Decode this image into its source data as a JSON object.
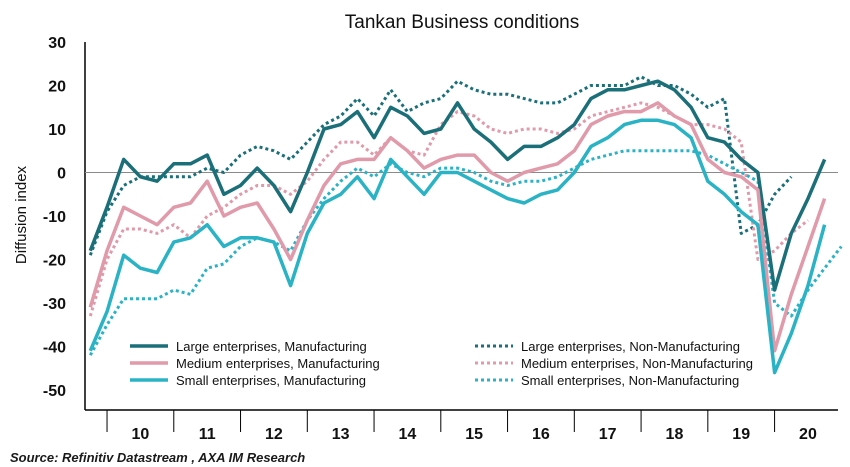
{
  "chart_data": {
    "type": "line",
    "title": "Tankan Business conditions",
    "ylabel": "Diffusion index",
    "source": "Source: Refinitiv Datastream , AXA IM Research",
    "ylim": [
      -50,
      30
    ],
    "yticks": [
      30,
      20,
      10,
      0,
      -10,
      -20,
      -30,
      -40,
      -50
    ],
    "xticks": [
      "10",
      "11",
      "12",
      "13",
      "14",
      "15",
      "16",
      "17",
      "18",
      "19",
      "20"
    ],
    "x_start_year": 2009.75,
    "x_step": 0.25,
    "grid": false,
    "zero_line": true,
    "legend_position": "bottom",
    "series": [
      {
        "name": "Large enterprises, Manufacturing",
        "color": "#1a6f78",
        "style": "solid",
        "values": [
          -18,
          -8,
          3,
          -1,
          -2,
          2,
          2,
          4,
          -5,
          -3,
          1,
          -3,
          -9,
          0,
          10,
          11,
          14,
          8,
          15,
          13,
          9,
          10,
          16,
          10,
          7,
          3,
          6,
          6,
          8,
          11,
          17,
          19,
          19,
          20,
          21,
          19,
          15,
          8,
          7,
          3,
          0,
          -27,
          -14,
          -6,
          3
        ]
      },
      {
        "name": "Large enterprises, Non-Manufacturing",
        "color": "#1a6f78",
        "style": "dotted",
        "values": [
          -19,
          -9,
          -3,
          -1,
          -1,
          -1,
          -1,
          1,
          0,
          4,
          6,
          5,
          3,
          7,
          11,
          13,
          17,
          13,
          19,
          14,
          16,
          17,
          21,
          19,
          18,
          18,
          17,
          16,
          16,
          18,
          20,
          20,
          20,
          22,
          20,
          20,
          18,
          15,
          17,
          -14,
          -12,
          -5,
          -1
        ]
      },
      {
        "name": "Medium enterprises, Manufacturing",
        "color": "#e09aaa",
        "style": "solid",
        "values": [
          -31,
          -18,
          -8,
          -10,
          -12,
          -8,
          -7,
          -2,
          -10,
          -8,
          -7,
          -13,
          -20,
          -11,
          -3,
          2,
          3,
          3,
          8,
          5,
          1,
          3,
          4,
          4,
          0,
          -2,
          0,
          1,
          2,
          5,
          11,
          13,
          14,
          14,
          16,
          13,
          11,
          3,
          0,
          -1,
          -4,
          -41,
          -28,
          -17,
          -6
        ]
      },
      {
        "name": "Medium enterprises, Non-Manufacturing",
        "color": "#e09aaa",
        "style": "dotted",
        "values": [
          -33,
          -20,
          -13,
          -13,
          -14,
          -12,
          -15,
          -10,
          -8,
          -5,
          -3,
          -3,
          -5,
          -2,
          3,
          7,
          7,
          4,
          8,
          5,
          4,
          11,
          14,
          13,
          10,
          9,
          10,
          10,
          9,
          10,
          13,
          14,
          15,
          16,
          15,
          13,
          11,
          11,
          10,
          7,
          -20,
          -18,
          -14,
          -11
        ]
      },
      {
        "name": "Small enterprises, Manufacturing",
        "color": "#2ab3c5",
        "style": "solid",
        "values": [
          -41,
          -32,
          -19,
          -22,
          -23,
          -16,
          -15,
          -12,
          -17,
          -15,
          -15,
          -16,
          -26,
          -14,
          -7,
          -5,
          -1,
          -6,
          3,
          -1,
          -5,
          0,
          0,
          -2,
          -4,
          -6,
          -7,
          -5,
          -4,
          0,
          6,
          8,
          11,
          12,
          12,
          11,
          8,
          -2,
          -5,
          -9,
          -12,
          -46,
          -37,
          -26,
          -12
        ]
      },
      {
        "name": "Small enterprises, Non-Manufacturing",
        "color": "#2ab3c5",
        "style": "dotted",
        "values": [
          -42,
          -35,
          -29,
          -29,
          -29,
          -27,
          -28,
          -22,
          -21,
          -17,
          -15,
          -16,
          -18,
          -11,
          -6,
          -2,
          1,
          -1,
          2,
          0,
          -1,
          1,
          1,
          0,
          -2,
          -3,
          -2,
          -2,
          -1,
          1,
          3,
          4,
          5,
          5,
          5,
          5,
          5,
          4,
          2,
          0,
          -2,
          -30,
          -33,
          -27,
          -22,
          -17
        ]
      }
    ]
  }
}
